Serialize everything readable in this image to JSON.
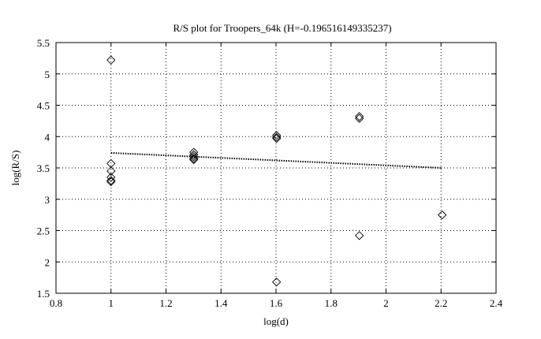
{
  "chart_data": {
    "type": "scatter",
    "title": "R/S plot for Troopers_64k (H=-0.196516149335237)",
    "xlabel": "log(d)",
    "ylabel": "log(R/S)",
    "xlim": [
      0.8,
      2.4
    ],
    "ylim": [
      1.5,
      5.5
    ],
    "xticks": [
      0.8,
      1,
      1.2,
      1.4,
      1.6,
      1.8,
      2,
      2.2,
      2.4
    ],
    "yticks": [
      1.5,
      2,
      2.5,
      3,
      3.5,
      4,
      4.5,
      5,
      5.5
    ],
    "xtick_labels": [
      "0.8",
      "1",
      "1.2",
      "1.4",
      "1.6",
      "1.8",
      "2",
      "2.2",
      "2.4"
    ],
    "ytick_labels": [
      "1.5",
      "2",
      "2.5",
      "3",
      "3.5",
      "4",
      "4.5",
      "5",
      "5.5"
    ],
    "grid": true,
    "marker": "diamond",
    "colors": {
      "marker": "#000000",
      "fit_line": "#000000",
      "grid": "#000000"
    },
    "series": [
      {
        "type": "scatter",
        "x": [
          1.0,
          1.0,
          1.0,
          1.0,
          1.0,
          1.0,
          1.301,
          1.301,
          1.301,
          1.301,
          1.301,
          1.602,
          1.602,
          1.602,
          1.602,
          1.903,
          1.903,
          1.903,
          2.204
        ],
        "y": [
          5.22,
          3.57,
          3.45,
          3.35,
          3.3,
          3.28,
          3.75,
          3.71,
          3.68,
          3.65,
          3.63,
          4.02,
          3.99,
          3.97,
          1.68,
          4.32,
          4.29,
          2.42,
          2.75
        ]
      },
      {
        "type": "line",
        "style": "dotted",
        "x": [
          1.0,
          2.204
        ],
        "y": [
          3.74,
          3.5
        ]
      }
    ]
  }
}
